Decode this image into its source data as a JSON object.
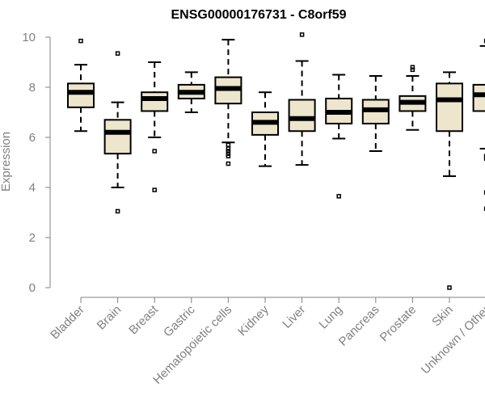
{
  "chart_data": {
    "type": "boxplot",
    "title": "ENSG00000176731 - C8orf59",
    "xlabel": "",
    "ylabel": "Expression",
    "ylim": [
      0,
      10
    ],
    "yticks": [
      "0",
      "2",
      "4",
      "6",
      "8",
      "10"
    ],
    "box_fill": "#ede6cc",
    "box_stroke": "#000000",
    "categories": [
      "Bladder",
      "Brain",
      "Breast",
      "Gastric",
      "Hematopoietic cells",
      "Kidney",
      "Liver",
      "Lung",
      "Pancreas",
      "Prostate",
      "Skin",
      "Unknown / Other"
    ],
    "boxes": [
      {
        "name": "Bladder",
        "min": 6.25,
        "q1": 7.2,
        "median": 7.8,
        "q3": 8.15,
        "max": 8.9,
        "outliers": [
          9.85
        ]
      },
      {
        "name": "Brain",
        "min": 4.0,
        "q1": 5.35,
        "median": 6.2,
        "q3": 6.7,
        "max": 7.4,
        "outliers": [
          9.35,
          3.05
        ]
      },
      {
        "name": "Breast",
        "min": 6.0,
        "q1": 7.05,
        "median": 7.55,
        "q3": 7.8,
        "max": 9.0,
        "outliers": [
          5.45,
          3.9
        ]
      },
      {
        "name": "Gastric",
        "min": 7.0,
        "q1": 7.55,
        "median": 7.8,
        "q3": 8.1,
        "max": 8.6,
        "outliers": []
      },
      {
        "name": "Hematopoietic cells",
        "min": 5.8,
        "q1": 7.35,
        "median": 7.95,
        "q3": 8.4,
        "max": 9.9,
        "outliers": [
          5.7,
          5.55,
          5.45,
          5.35,
          5.25,
          4.95
        ]
      },
      {
        "name": "Kidney",
        "min": 4.85,
        "q1": 6.1,
        "median": 6.6,
        "q3": 7.0,
        "max": 7.8,
        "outliers": []
      },
      {
        "name": "Liver",
        "min": 4.9,
        "q1": 6.25,
        "median": 6.75,
        "q3": 7.5,
        "max": 9.05,
        "outliers": [
          10.1
        ]
      },
      {
        "name": "Lung",
        "min": 5.95,
        "q1": 6.55,
        "median": 7.0,
        "q3": 7.55,
        "max": 8.5,
        "outliers": [
          3.65
        ]
      },
      {
        "name": "Pancreas",
        "min": 5.45,
        "q1": 6.55,
        "median": 7.1,
        "q3": 7.5,
        "max": 8.45,
        "outliers": []
      },
      {
        "name": "Prostate",
        "min": 6.3,
        "q1": 7.05,
        "median": 7.4,
        "q3": 7.65,
        "max": 8.45,
        "outliers": [
          8.7,
          8.8
        ]
      },
      {
        "name": "Skin",
        "min": 4.45,
        "q1": 6.25,
        "median": 7.5,
        "q3": 8.15,
        "max": 8.6,
        "outliers": [
          0.0
        ]
      },
      {
        "name": "Unknown / Other",
        "min": 5.55,
        "q1": 7.05,
        "median": 7.7,
        "q3": 8.1,
        "max": 9.65,
        "outliers": [
          9.85,
          5.25,
          5.15,
          3.8,
          3.15
        ]
      }
    ]
  }
}
